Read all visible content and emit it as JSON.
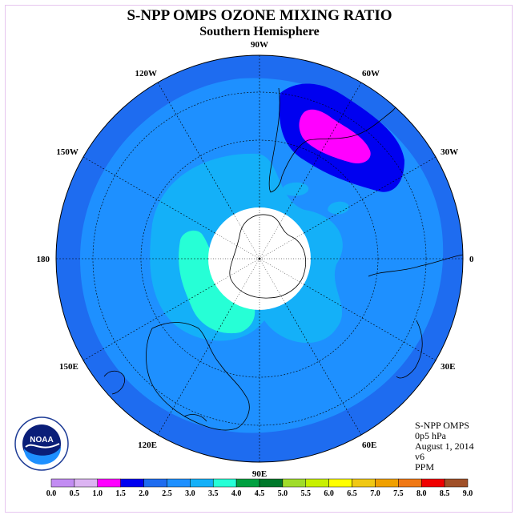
{
  "title": "S-NPP OMPS OZONE MIXING RATIO",
  "subtitle": "Southern Hemisphere",
  "info": {
    "product": "S-NPP OMPS",
    "level": "0p5 hPa",
    "date": "August 1, 2014",
    "version": "v6",
    "units": "PPM"
  },
  "logo_text": "NOAA",
  "chart_data": {
    "type": "heatmap",
    "projection": "polar-stereographic-south",
    "longitude_labels": [
      {
        "text": "0",
        "lon": 0
      },
      {
        "text": "30E",
        "lon": 30
      },
      {
        "text": "60E",
        "lon": 60
      },
      {
        "text": "90E",
        "lon": 90
      },
      {
        "text": "120E",
        "lon": 120
      },
      {
        "text": "150E",
        "lon": 150
      },
      {
        "text": "180",
        "lon": 180
      },
      {
        "text": "150W",
        "lon": -150
      },
      {
        "text": "120W",
        "lon": -120
      },
      {
        "text": "90W",
        "lon": -90
      },
      {
        "text": "60W",
        "lon": -60
      },
      {
        "text": "30W",
        "lon": -30
      }
    ],
    "colorbar": {
      "ticks": [
        "0.0",
        "0.5",
        "1.0",
        "1.5",
        "2.0",
        "2.5",
        "3.0",
        "3.5",
        "4.0",
        "4.5",
        "5.0",
        "5.5",
        "6.0",
        "6.5",
        "7.0",
        "7.5",
        "8.0",
        "8.5",
        "9.0"
      ],
      "colors": [
        "#c28cf2",
        "#dcb4f2",
        "#ff00ff",
        "#0000f0",
        "#1e6cf0",
        "#1e90ff",
        "#14b0f8",
        "#26ffd6",
        "#00a040",
        "#00782a",
        "#a0dc2a",
        "#c8f000",
        "#ffff00",
        "#f0c814",
        "#f0a000",
        "#f07814",
        "#f00000",
        "#a05028"
      ]
    },
    "field_levels": [
      {
        "value": 2.0,
        "color": "#1e6cf0",
        "region": "outer-ring"
      },
      {
        "value": 2.5,
        "color": "#1e90ff",
        "region": "background"
      },
      {
        "value": 3.0,
        "color": "#14b0f8",
        "region": "inner-ring"
      },
      {
        "value": 3.5,
        "color": "#26ffd6",
        "region": "patch-near-pole"
      },
      {
        "value": 1.5,
        "color": "#0000f0",
        "region": "low-near-60W"
      },
      {
        "value": 1.0,
        "color": "#ff00ff",
        "region": "minimum-near-60W"
      }
    ],
    "no_data_region": "polar-cap",
    "grid": true
  }
}
